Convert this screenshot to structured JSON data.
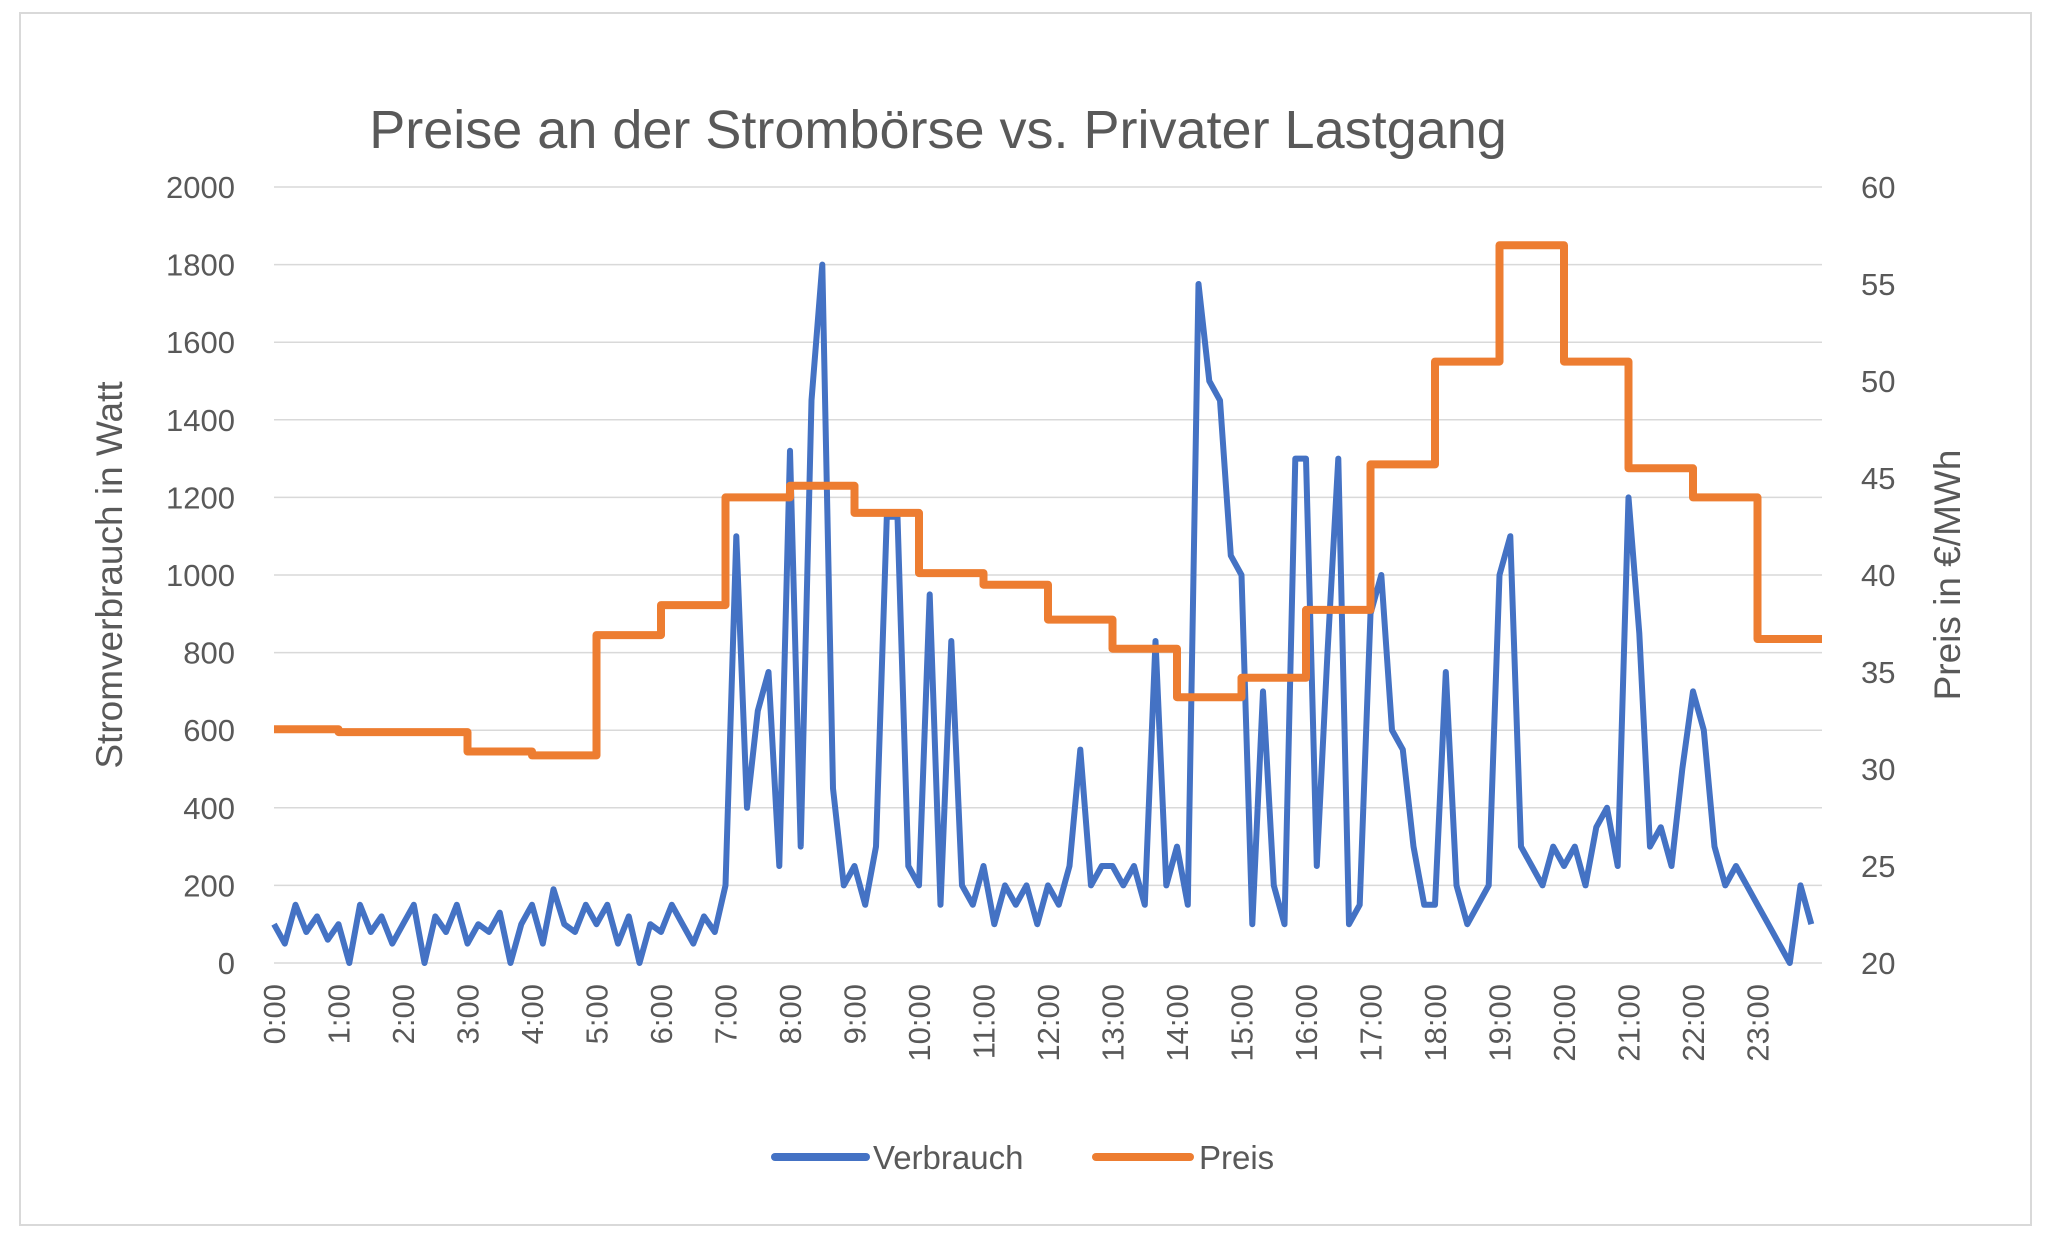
{
  "chart_data": {
    "type": "line",
    "title": "Preise an der Strombörse vs. Privater Lastgang",
    "ylabel": "Stromverbrauch in Watt",
    "y2label": "Preis in €/MWh",
    "ylim": [
      0,
      2000
    ],
    "y2lim": [
      20,
      60
    ],
    "yticks": [
      "0",
      "200",
      "400",
      "600",
      "800",
      "1000",
      "1200",
      "1400",
      "1600",
      "1800",
      "2000"
    ],
    "y2ticks": [
      "20",
      "25",
      "30",
      "35",
      "40",
      "45",
      "50",
      "55",
      "60"
    ],
    "xticks": [
      "0:00",
      "1:00",
      "2:00",
      "3:00",
      "4:00",
      "5:00",
      "6:00",
      "7:00",
      "8:00",
      "9:00",
      "10:00",
      "11:00",
      "12:00",
      "13:00",
      "14:00",
      "15:00",
      "16:00",
      "17:00",
      "18:00",
      "19:00",
      "20:00",
      "21:00",
      "22:00",
      "23:00"
    ],
    "grid": true,
    "legend_position": "bottom",
    "series": [
      {
        "name": "Verbrauch",
        "axis": "left",
        "color": "#4472C4",
        "x_step_minutes": 10,
        "values": [
          100,
          50,
          150,
          80,
          120,
          60,
          100,
          0,
          150,
          80,
          120,
          50,
          100,
          150,
          0,
          120,
          80,
          150,
          50,
          100,
          80,
          130,
          0,
          100,
          150,
          50,
          190,
          100,
          80,
          150,
          100,
          150,
          50,
          120,
          0,
          100,
          80,
          150,
          100,
          50,
          120,
          80,
          200,
          1100,
          400,
          650,
          750,
          250,
          1320,
          300,
          1450,
          1800,
          450,
          200,
          250,
          150,
          300,
          1150,
          1150,
          250,
          200,
          950,
          150,
          830,
          200,
          150,
          250,
          100,
          200,
          150,
          200,
          100,
          200,
          150,
          250,
          550,
          200,
          250,
          250,
          200,
          250,
          150,
          830,
          200,
          300,
          150,
          1750,
          1500,
          1450,
          1050,
          1000,
          100,
          700,
          200,
          100,
          1300,
          1300,
          250,
          800,
          1300,
          100,
          150,
          900,
          1000,
          600,
          550,
          300,
          150,
          150,
          750,
          200,
          100,
          150,
          200,
          1000,
          1100,
          300,
          250,
          200,
          300,
          250,
          300,
          200,
          350,
          400,
          250,
          1200,
          850,
          300,
          350,
          250,
          500,
          700,
          600,
          300,
          200,
          250,
          200,
          150,
          100,
          50,
          0,
          200,
          100
        ]
      },
      {
        "name": "Preis",
        "axis": "right",
        "color": "#ED7D31",
        "step": "hourly",
        "values": [
          32.05,
          31.9,
          31.9,
          30.9,
          30.7,
          36.9,
          38.45,
          44.0,
          44.6,
          43.2,
          40.1,
          39.5,
          37.7,
          36.2,
          33.7,
          34.7,
          38.2,
          45.7,
          51.0,
          57.0,
          51.0,
          45.5,
          44.0,
          36.7
        ]
      }
    ]
  }
}
